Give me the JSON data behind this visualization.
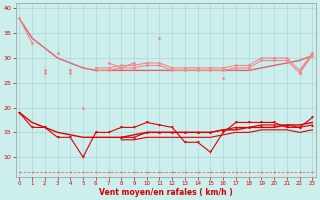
{
  "x": [
    0,
    1,
    2,
    3,
    4,
    5,
    6,
    7,
    8,
    9,
    10,
    11,
    12,
    13,
    14,
    15,
    16,
    17,
    18,
    19,
    20,
    21,
    22,
    23
  ],
  "pink_zigzag": [
    38,
    33,
    null,
    31,
    null,
    20,
    null,
    29,
    28,
    29,
    null,
    34,
    null,
    null,
    null,
    null,
    26,
    null,
    null,
    null,
    null,
    null,
    27,
    31
  ],
  "pink_flat1": [
    null,
    null,
    27.5,
    null,
    27.5,
    null,
    28,
    28,
    28.5,
    28.5,
    29,
    29,
    28,
    28,
    28,
    28,
    28,
    28.5,
    28.5,
    30,
    30,
    30,
    27.5,
    31
  ],
  "pink_flat2": [
    null,
    null,
    27,
    null,
    27,
    null,
    27.5,
    27.5,
    28,
    28,
    28.5,
    28.5,
    27.5,
    27.5,
    27.5,
    27.5,
    27.5,
    28,
    28,
    29.5,
    29.5,
    29.5,
    27,
    30.5
  ],
  "pink_trend": [
    38,
    34,
    32,
    30,
    29,
    28,
    27.5,
    27.5,
    27.5,
    27.5,
    27.5,
    27.5,
    27.5,
    27.5,
    27.5,
    27.5,
    27.5,
    27.5,
    27.5,
    28,
    28.5,
    29,
    29.5,
    30.5
  ],
  "red_zigzag": [
    19,
    16,
    16,
    14,
    14,
    10,
    15,
    15,
    16,
    16,
    17,
    16.5,
    16,
    13,
    13,
    11,
    15,
    17,
    17,
    17,
    17,
    16,
    16,
    18
  ],
  "red_flat1": [
    null,
    null,
    null,
    null,
    null,
    null,
    null,
    null,
    14,
    14,
    15,
    15,
    15,
    15,
    15,
    15,
    15.5,
    16,
    16,
    16.5,
    16.5,
    16.5,
    16,
    16.5
  ],
  "red_trend1": [
    19,
    17,
    16,
    15,
    14.5,
    14,
    14,
    14,
    14,
    14.5,
    15,
    15,
    15,
    15,
    15,
    15,
    15.5,
    15.5,
    16,
    16,
    16,
    16.5,
    16.5,
    17
  ],
  "red_trend2": [
    null,
    null,
    null,
    null,
    null,
    null,
    null,
    null,
    13.5,
    13.5,
    14,
    14,
    14,
    14,
    14,
    14,
    14.5,
    15,
    15,
    15.5,
    15.5,
    15.5,
    15,
    15.5
  ],
  "dashed_flat": [
    7,
    7,
    7,
    7,
    7,
    7,
    7,
    7,
    7,
    7,
    7,
    7,
    7,
    7,
    7,
    7,
    7,
    7,
    7,
    7,
    7,
    7,
    7,
    7
  ],
  "bg": "#cceeed",
  "grid_color": "#aad8d8",
  "pink": "#f08888",
  "pink_dark": "#e06070",
  "red": "#dd0000",
  "red_dark": "#aa0000",
  "dash_color": "#ff5555",
  "xlabel": "Vent moyen/en rafales ( km/h )",
  "ylim": [
    6,
    41
  ],
  "xlim": [
    -0.3,
    23.3
  ],
  "yticks": [
    10,
    15,
    20,
    25,
    30,
    35,
    40
  ],
  "xticks": [
    0,
    1,
    2,
    3,
    4,
    5,
    6,
    7,
    8,
    9,
    10,
    11,
    12,
    13,
    14,
    15,
    16,
    17,
    18,
    19,
    20,
    21,
    22,
    23
  ]
}
